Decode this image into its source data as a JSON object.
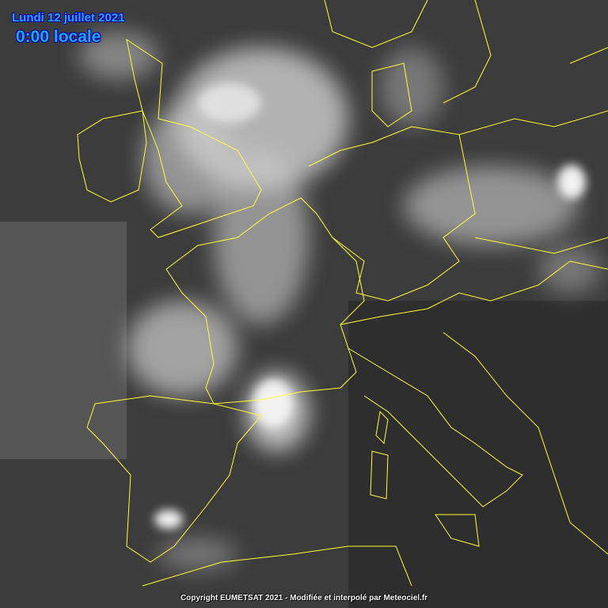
{
  "header": {
    "date": "Lundi 12 juillet 2021",
    "time": "0:00 locale"
  },
  "footer": {
    "copyright": "Copyright EUMETSAT 2021  - Modifiée et interpolé par Meteociel.fr"
  },
  "colors": {
    "title": "#1aa8ff",
    "borders": "#ffff33",
    "background": "#3a3a3a"
  },
  "image": {
    "type": "infrared satellite image",
    "region": "Western Europe"
  }
}
